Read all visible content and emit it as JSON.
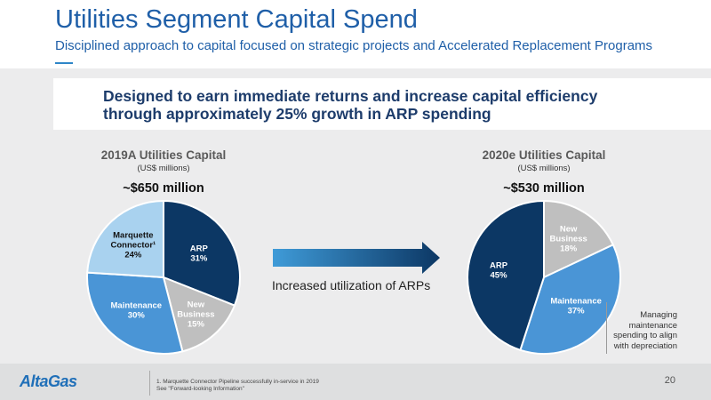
{
  "header": {
    "title": "Utilities Segment Capital Spend",
    "subtitle": "Disciplined approach to capital focused on strategic projects and Accelerated Replacement Programs"
  },
  "highlight": {
    "line1": "Designed to earn immediate returns and increase capital efficiency",
    "line2": "through approximately 25% growth in ARP spending"
  },
  "colors": {
    "title_blue": "#1f5fa8",
    "navy": "#0c3764",
    "grey": "#bfbfbf",
    "mid_blue": "#4a95d6",
    "light_blue": "#a9d2ef"
  },
  "chart_data": [
    {
      "type": "pie",
      "title": "2019A Utilities Capital",
      "subtitle": "(US$ millions)",
      "total_label": "~$650 million",
      "slices": [
        {
          "label": "ARP",
          "value": 31,
          "value_label": "31%",
          "color": "#0c3764",
          "text_color": "#ffffff"
        },
        {
          "label": "New Business",
          "value": 15,
          "value_label": "15%",
          "color": "#bfbfbf",
          "text_color": "#ffffff"
        },
        {
          "label": "Maintenance",
          "value": 30,
          "value_label": "30%",
          "color": "#4a95d6",
          "text_color": "#ffffff"
        },
        {
          "label": "Marquette Connector¹",
          "value": 24,
          "value_label": "24%",
          "color": "#a9d2ef",
          "text_color": "#111111"
        }
      ]
    },
    {
      "type": "pie",
      "title": "2020e Utilities Capital",
      "subtitle": "(US$ millions)",
      "total_label": "~$530 million",
      "slices": [
        {
          "label": "New Business",
          "value": 18,
          "value_label": "18%",
          "color": "#bfbfbf",
          "text_color": "#ffffff"
        },
        {
          "label": "Maintenance",
          "value": 37,
          "value_label": "37%",
          "color": "#4a95d6",
          "text_color": "#ffffff"
        },
        {
          "label": "ARP",
          "value": 45,
          "value_label": "45%",
          "color": "#0c3764",
          "text_color": "#ffffff"
        }
      ]
    }
  ],
  "arrow": {
    "caption": "Increased utilization of ARPs"
  },
  "annotation": {
    "text": "Managing maintenance spending to align with depreciation"
  },
  "footer": {
    "logo_text": "AltaGas",
    "footnote1": "1. Marquette Connector Pipeline successfully in-service in 2019",
    "footnote2": "See \"Forward-looking Information\"",
    "page_number": "20"
  }
}
